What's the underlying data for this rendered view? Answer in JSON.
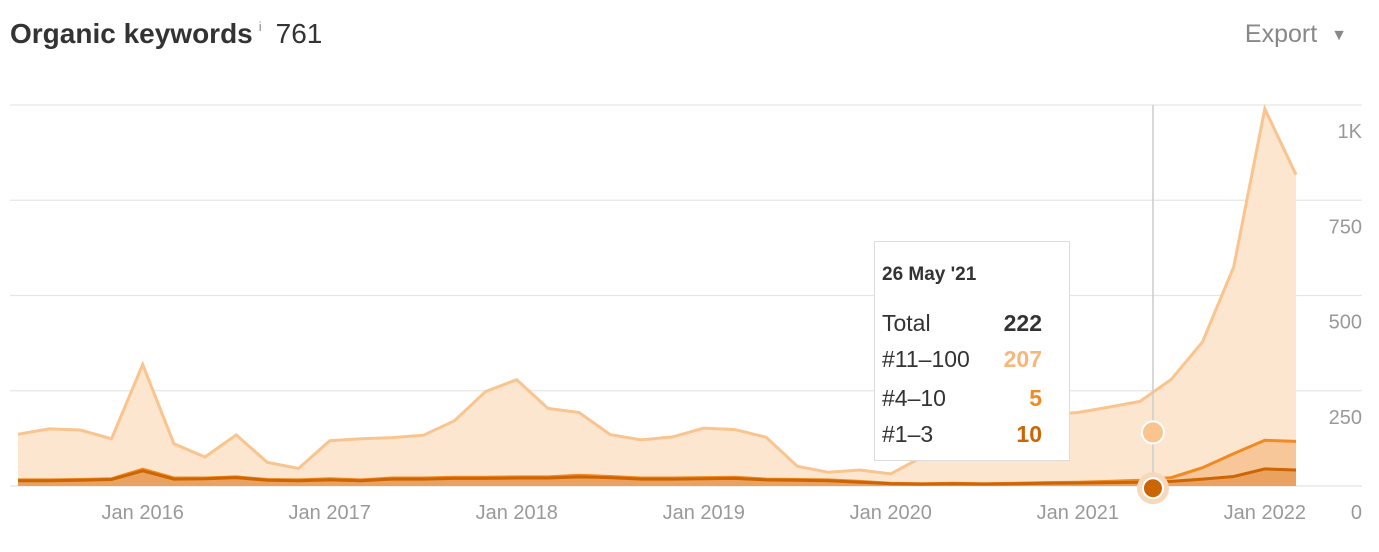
{
  "header": {
    "title": "Organic keywords",
    "info_icon": "i",
    "count": "761",
    "export_label": "Export",
    "export_caret": "▼"
  },
  "colors": {
    "top100": "#f9c48e",
    "top100_fill": "#fde6cf",
    "top10": "#ef8a24",
    "top3": "#cc6504",
    "grid": "#e6e6e6",
    "axis_text": "#999999"
  },
  "tooltip": {
    "date": "26 May '21",
    "rows": [
      {
        "label": "Total",
        "value": "222",
        "color": "#333333"
      },
      {
        "label": "#11–100",
        "value": "207",
        "color": "#f7b77a"
      },
      {
        "label": "#4–10",
        "value": "5",
        "color": "#ef8a24"
      },
      {
        "label": "#1–3",
        "value": "10",
        "color": "#cc6504"
      }
    ]
  },
  "chart_data": {
    "type": "area",
    "x_start": "2015-05",
    "x_end": "2022-03",
    "xticks": [
      "Jan 2016",
      "Jan 2017",
      "Jan 2018",
      "Jan 2019",
      "Jan 2020",
      "Jan 2021",
      "Jan 2022"
    ],
    "yticks": [
      "0",
      "250",
      "500",
      "750",
      "1K"
    ],
    "ylim": [
      0,
      1000
    ],
    "grid": true,
    "stacked": true,
    "cursor_date": "2021-05-26",
    "x": [
      "2015-05",
      "2015-07",
      "2015-09",
      "2015-11",
      "2016-01",
      "2016-03",
      "2016-05",
      "2016-07",
      "2016-09",
      "2016-11",
      "2017-01",
      "2017-03",
      "2017-05",
      "2017-07",
      "2017-09",
      "2017-11",
      "2018-01",
      "2018-03",
      "2018-05",
      "2018-07",
      "2018-09",
      "2018-11",
      "2019-01",
      "2019-03",
      "2019-05",
      "2019-07",
      "2019-09",
      "2019-11",
      "2020-01",
      "2020-03",
      "2020-05",
      "2020-07",
      "2020-09",
      "2020-11",
      "2021-01",
      "2021-03",
      "2021-05",
      "2021-07",
      "2021-09",
      "2021-11",
      "2022-01",
      "2022-03"
    ],
    "series": [
      {
        "name": "#1–3",
        "values": [
          14,
          14,
          15,
          17,
          40,
          18,
          19,
          22,
          15,
          14,
          16,
          14,
          18,
          18,
          20,
          20,
          21,
          21,
          24,
          22,
          18,
          18,
          19,
          20,
          16,
          15,
          14,
          10,
          6,
          5,
          6,
          5,
          6,
          7,
          8,
          9,
          10,
          12,
          18,
          25,
          45,
          42
        ]
      },
      {
        "name": "#4–10",
        "values": [
          2,
          2,
          2,
          2,
          4,
          3,
          2,
          2,
          2,
          2,
          3,
          2,
          3,
          3,
          3,
          3,
          3,
          3,
          4,
          3,
          3,
          3,
          3,
          3,
          2,
          2,
          2,
          2,
          1,
          1,
          1,
          1,
          1,
          2,
          2,
          3,
          5,
          10,
          30,
          60,
          75,
          75
        ]
      },
      {
        "name": "#11–100",
        "values": [
          120,
          134,
          130,
          105,
          275,
          90,
          55,
          110,
          45,
          30,
          100,
          108,
          106,
          112,
          148,
          225,
          255,
          180,
          165,
          110,
          100,
          108,
          130,
          125,
          110,
          35,
          20,
          30,
          25,
          70,
          120,
          145,
          162,
          178,
          183,
          195,
          207,
          258,
          330,
          490,
          870,
          700
        ]
      }
    ]
  }
}
